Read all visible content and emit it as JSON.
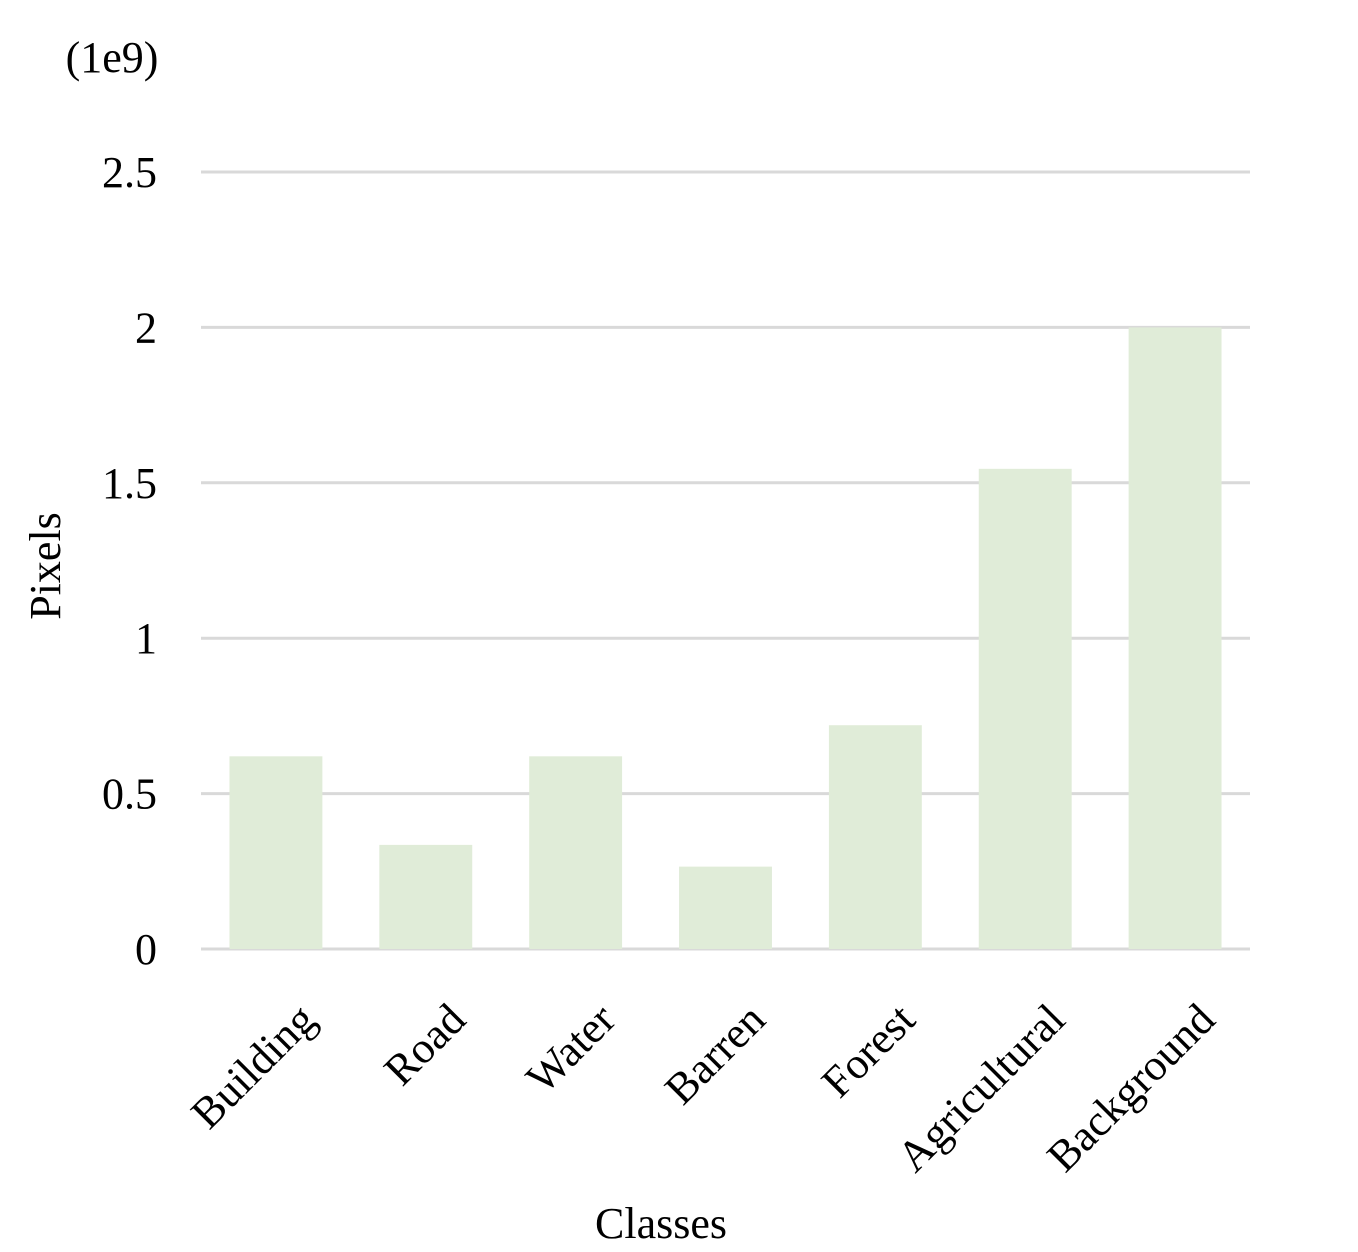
{
  "chart_data": {
    "type": "bar",
    "scale_label": "(1e9)",
    "xlabel": "Classes",
    "ylabel": "Pixels",
    "categories": [
      "Building",
      "Road",
      "Water",
      "Barren",
      "Forest",
      "Agricultural",
      "Background"
    ],
    "values": [
      0.62,
      0.335,
      0.62,
      0.265,
      0.72,
      1.545,
      2.0
    ],
    "ylim": [
      0,
      2.5
    ],
    "yticks": [
      0,
      0.5,
      1,
      1.5,
      2,
      2.5
    ],
    "ytick_labels": [
      "0",
      "0.5",
      "1",
      "1.5",
      "2",
      "2.5"
    ],
    "grid": true,
    "legend": "none",
    "colors": {
      "bar": "#e0ecd8",
      "grid": "#d9d9d9"
    }
  }
}
